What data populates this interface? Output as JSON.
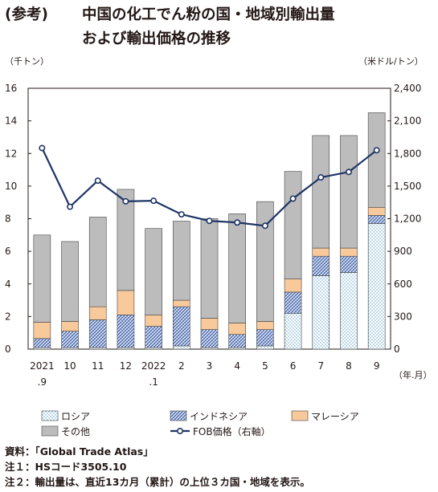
{
  "heading": {
    "prefix": "(参考)",
    "line1": "中国の化工でん粉の国・地域別輸出量",
    "line2": "および輸出価格の推移"
  },
  "chart_data": {
    "type": "bar",
    "stacked": true,
    "secondary_axis": true,
    "title": "中国の化工でん粉の国・地域別輸出量および輸出価格の推移",
    "y_unit_left": "（千トン）",
    "y_unit_right": "（米ドル/トン）",
    "x_unit": "（年.月）",
    "ylim_left": [
      0,
      16
    ],
    "ylim_right": [
      0,
      2400
    ],
    "yticks_left": [
      "0",
      "2",
      "4",
      "6",
      "8",
      "10",
      "12",
      "14",
      "16"
    ],
    "yticks_right": [
      "0",
      "300",
      "600",
      "900",
      "1,200",
      "1,500",
      "1,800",
      "2,100",
      "2,400"
    ],
    "categories": [
      [
        "2021",
        ".9"
      ],
      [
        "10"
      ],
      [
        "11"
      ],
      [
        "12"
      ],
      [
        "2022",
        ".1"
      ],
      [
        "2"
      ],
      [
        "3"
      ],
      [
        "4"
      ],
      [
        "5"
      ],
      [
        "6"
      ],
      [
        "7"
      ],
      [
        "8"
      ],
      [
        "9"
      ]
    ],
    "series": [
      {
        "name": "ロシア",
        "pattern": "dots",
        "color": "#5aa0c8",
        "values": [
          0.1,
          0.1,
          0.1,
          0.1,
          0.1,
          0.2,
          0.1,
          0.1,
          0.2,
          2.2,
          4.5,
          4.7,
          7.7
        ]
      },
      {
        "name": "インドネシア",
        "pattern": "hatch",
        "color": "#3d5fa8",
        "values": [
          0.55,
          1.0,
          1.7,
          2.0,
          1.3,
          2.4,
          1.1,
          0.8,
          1.0,
          1.3,
          1.2,
          1.0,
          0.5
        ]
      },
      {
        "name": "マレーシア",
        "pattern": "solid",
        "color": "#f7c99b",
        "values": [
          1.0,
          0.6,
          0.8,
          1.5,
          0.7,
          0.4,
          0.7,
          0.7,
          0.5,
          0.8,
          0.5,
          0.5,
          0.5
        ]
      },
      {
        "name": "その他",
        "pattern": "solid",
        "color": "#bcbcbc",
        "values": [
          5.35,
          4.9,
          5.5,
          6.2,
          5.3,
          4.85,
          6.1,
          6.7,
          7.35,
          6.6,
          6.9,
          6.9,
          5.8
        ]
      }
    ],
    "line_series": {
      "name": "FOB価格（右軸）",
      "axis": "right",
      "color": "#1f3566",
      "values": [
        1850,
        1310,
        1550,
        1360,
        1365,
        1240,
        1180,
        1165,
        1135,
        1385,
        1580,
        1630,
        1830
      ]
    },
    "legend_position": "bottom",
    "grid": false
  },
  "notes": [
    "資料：「Global Trade Atlas」",
    "注１：HSコード3505.10",
    "注２：輸出量は、直近13カ月（累計）の上位３カ国・地域を表示。"
  ]
}
